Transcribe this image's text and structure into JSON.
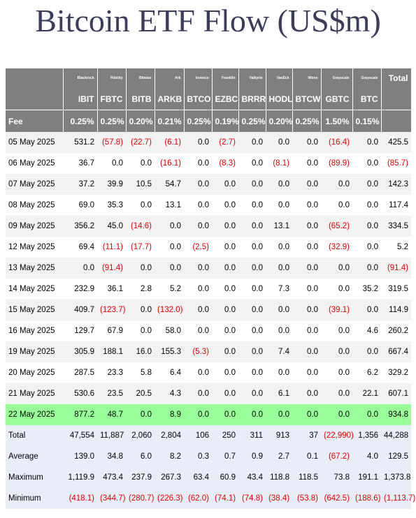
{
  "title": "Bitcoin ETF Flow (US$m)",
  "table": {
    "issuers": [
      "Blackrock",
      "Fidelity",
      "Bitwise",
      "Ark",
      "Invesco",
      "Franklin",
      "Valkyrie",
      "VanEck",
      "Wtree",
      "Grayscale",
      "Grayscale"
    ],
    "total_label": "Total",
    "tickers": [
      "IBIT",
      "FBTC",
      "BITB",
      "ARKB",
      "BTCO",
      "EZBC",
      "BRRR",
      "HODL",
      "BTCW",
      "GBTC",
      "BTC"
    ],
    "fee_label": "Fee",
    "fees": [
      "0.25%",
      "0.25%",
      "0.20%",
      "0.21%",
      "0.25%",
      "0.19%",
      "0.25%",
      "0.20%",
      "0.25%",
      "1.50%",
      "0.15%"
    ],
    "rows": [
      {
        "date": "05 May 2025",
        "values": [
          "531.2",
          "(57.8)",
          "(22.7)",
          "(6.1)",
          "0.0",
          "(2.7)",
          "0.0",
          "0.0",
          "0.0",
          "(16.4)",
          "0.0"
        ],
        "total": "425.5"
      },
      {
        "date": "06 May 2025",
        "values": [
          "36.7",
          "0.0",
          "0.0",
          "(16.1)",
          "0.0",
          "(8.3)",
          "0.0",
          "(8.1)",
          "0.0",
          "(89.9)",
          "0.0"
        ],
        "total": "(85.7)"
      },
      {
        "date": "07 May 2025",
        "values": [
          "37.2",
          "39.9",
          "10.5",
          "54.7",
          "0.0",
          "0.0",
          "0.0",
          "0.0",
          "0.0",
          "0.0",
          "0.0"
        ],
        "total": "142.3"
      },
      {
        "date": "08 May 2025",
        "values": [
          "69.0",
          "35.3",
          "0.0",
          "13.1",
          "0.0",
          "0.0",
          "0.0",
          "0.0",
          "0.0",
          "0.0",
          "0.0"
        ],
        "total": "117.4"
      },
      {
        "date": "09 May 2025",
        "values": [
          "356.2",
          "45.0",
          "(14.6)",
          "0.0",
          "0.0",
          "0.0",
          "0.0",
          "13.1",
          "0.0",
          "(65.2)",
          "0.0"
        ],
        "total": "334.5"
      },
      {
        "date": "12 May 2025",
        "values": [
          "69.4",
          "(11.1)",
          "(17.7)",
          "0.0",
          "(2.5)",
          "0.0",
          "0.0",
          "0.0",
          "0.0",
          "(32.9)",
          "0.0"
        ],
        "total": "5.2"
      },
      {
        "date": "13 May 2025",
        "values": [
          "0.0",
          "(91.4)",
          "0.0",
          "0.0",
          "0.0",
          "0.0",
          "0.0",
          "0.0",
          "0.0",
          "0.0",
          "0.0"
        ],
        "total": "(91.4)"
      },
      {
        "date": "14 May 2025",
        "values": [
          "232.9",
          "36.1",
          "2.8",
          "5.2",
          "0.0",
          "0.0",
          "0.0",
          "7.3",
          "0.0",
          "0.0",
          "35.2"
        ],
        "total": "319.5"
      },
      {
        "date": "15 May 2025",
        "values": [
          "409.7",
          "(123.7)",
          "0.0",
          "(132.0)",
          "0.0",
          "0.0",
          "0.0",
          "0.0",
          "0.0",
          "(39.1)",
          "0.0"
        ],
        "total": "114.9"
      },
      {
        "date": "16 May 2025",
        "values": [
          "129.7",
          "67.9",
          "0.0",
          "58.0",
          "0.0",
          "0.0",
          "0.0",
          "0.0",
          "0.0",
          "0.0",
          "4.6"
        ],
        "total": "260.2"
      },
      {
        "date": "19 May 2025",
        "values": [
          "305.9",
          "188.1",
          "16.0",
          "155.3",
          "(5.3)",
          "0.0",
          "0.0",
          "7.4",
          "0.0",
          "0.0",
          "0.0"
        ],
        "total": "667.4"
      },
      {
        "date": "20 May 2025",
        "values": [
          "287.5",
          "23.3",
          "5.8",
          "6.4",
          "0.0",
          "0.0",
          "0.0",
          "0.0",
          "0.0",
          "0.0",
          "6.2"
        ],
        "total": "329.2"
      },
      {
        "date": "21 May 2025",
        "values": [
          "530.6",
          "23.5",
          "20.5",
          "4.3",
          "0.0",
          "0.0",
          "0.0",
          "6.1",
          "0.0",
          "0.0",
          "22.1"
        ],
        "total": "607.1"
      },
      {
        "date": "22 May 2025",
        "values": [
          "877.2",
          "48.7",
          "0.0",
          "8.9",
          "0.0",
          "0.0",
          "0.0",
          "0.0",
          "0.0",
          "0.0",
          "0.0"
        ],
        "total": "934.8",
        "highlight": true
      }
    ],
    "summary": [
      {
        "label": "Total",
        "values": [
          "47,554",
          "11,887",
          "2,060",
          "2,804",
          "106",
          "250",
          "311",
          "913",
          "37",
          "(22,990)",
          "1,356"
        ],
        "total": "44,288"
      },
      {
        "label": "Average",
        "values": [
          "139.0",
          "34.8",
          "6.0",
          "8.2",
          "0.3",
          "0.7",
          "0.9",
          "2.7",
          "0.1",
          "(67.2)",
          "4.0"
        ],
        "total": "129.5"
      },
      {
        "label": "Maximum",
        "values": [
          "1,119.9",
          "473.4",
          "237.9",
          "267.3",
          "63.4",
          "60.9",
          "43.4",
          "118.8",
          "118.5",
          "73.8",
          "191.1"
        ],
        "total": "1,373.8"
      },
      {
        "label": "Minimum",
        "values": [
          "(418.1)",
          "(344.7)",
          "(280.7)",
          "(226.3)",
          "(62.0)",
          "(74.1)",
          "(74.8)",
          "(38.4)",
          "(53.8)",
          "(642.5)",
          "(188.6)"
        ],
        "total": "(1,113.7)"
      }
    ]
  },
  "colors": {
    "title": "#3c3d5c",
    "header_bg": "#7f7f7f",
    "row_shade": "#f2f2f2",
    "highlight_row": "#99ff99",
    "summary_bg": "#e9edf7",
    "negative": "#e00000"
  }
}
